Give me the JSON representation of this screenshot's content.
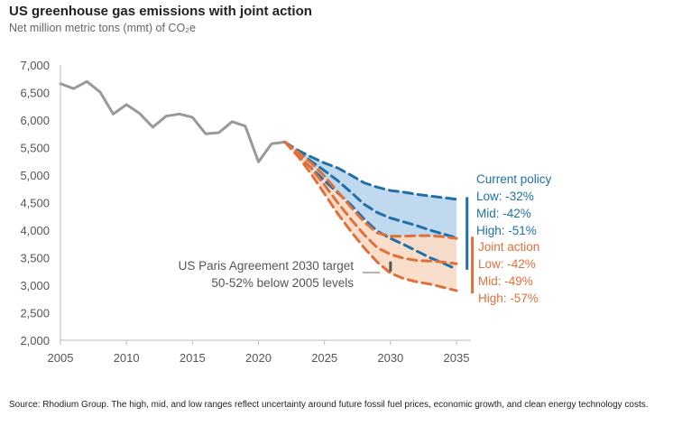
{
  "title": "US greenhouse gas emissions with joint action",
  "subtitle": "Net million metric tons (mmt) of CO₂e",
  "source": "Source: Rhodium Group. The high, mid, and low ranges reflect uncertainty around future fossil fuel prices, economic growth, and clean energy technology costs.",
  "colors": {
    "historical": "#999999",
    "current_policy": "#1f6fa8",
    "current_policy_fill": "#bdd7ee",
    "joint_action": "#e0703a",
    "joint_action_fill": "#f9dcc8",
    "axis": "#bbbbbb"
  },
  "annotations": {
    "current_policy": {
      "heading": "Current policy",
      "low": "Low: -32%",
      "mid": "Mid: -42%",
      "high": "High: -51%"
    },
    "joint_action": {
      "heading": "Joint action",
      "low": "Low: -42%",
      "mid": "Mid: -49%",
      "high": "High: -57%"
    },
    "paris": {
      "line1": "US Paris Agreement 2030 target",
      "line2": "50-52% below 2005 levels"
    }
  },
  "chart_data": {
    "type": "line",
    "title": "US greenhouse gas emissions with joint action",
    "ylabel": "Net million metric tons (mmt) of CO₂e",
    "xlim": [
      2005,
      2035
    ],
    "ylim": [
      2000,
      7000
    ],
    "x_ticks": [
      2005,
      2010,
      2015,
      2020,
      2025,
      2030,
      2035
    ],
    "y_ticks": [
      2000,
      2500,
      3000,
      3500,
      4000,
      4500,
      5000,
      5500,
      6000,
      6500,
      7000
    ],
    "y_tick_labels": [
      "2,000",
      "2,500",
      "3,000",
      "3,500",
      "4,000",
      "4,500",
      "5,000",
      "5,500",
      "6,000",
      "6,500",
      "7,000"
    ],
    "grid": false,
    "series": [
      {
        "style": "solid",
        "color": "#999999",
        "x": [
          2005,
          2006,
          2007,
          2008,
          2009,
          2010,
          2011,
          2012,
          2013,
          2014,
          2015,
          2016,
          2017,
          2018,
          2019,
          2020,
          2021,
          2022
        ],
        "values": [
          6660,
          6570,
          6700,
          6510,
          6110,
          6280,
          6120,
          5870,
          6070,
          6110,
          6050,
          5750,
          5770,
          5970,
          5890,
          5240,
          5570,
          5600
        ]
      },
      {
        "name": "Current policy Low",
        "style": "dashed",
        "color": "#1f6fa8",
        "x": [
          2022,
          2023,
          2024,
          2025,
          2026,
          2027,
          2028,
          2029,
          2030,
          2031,
          2032,
          2033,
          2034,
          2035
        ],
        "values": [
          5600,
          5450,
          5330,
          5220,
          5130,
          5000,
          4860,
          4780,
          4720,
          4690,
          4650,
          4620,
          4590,
          4560
        ]
      },
      {
        "name": "Current policy Mid",
        "style": "dashed",
        "color": "#1f6fa8",
        "x": [
          2022,
          2023,
          2024,
          2025,
          2026,
          2027,
          2028,
          2029,
          2030,
          2031,
          2032,
          2033,
          2034,
          2035
        ],
        "values": [
          5600,
          5420,
          5250,
          5080,
          4900,
          4690,
          4470,
          4320,
          4220,
          4150,
          4080,
          4000,
          3930,
          3860
        ]
      },
      {
        "name": "Current policy High",
        "style": "dashed",
        "color": "#1f6fa8",
        "x": [
          2022,
          2023,
          2024,
          2025,
          2026,
          2027,
          2028,
          2029,
          2030,
          2031,
          2032,
          2033,
          2034,
          2035
        ],
        "values": [
          5600,
          5360,
          5130,
          4900,
          4680,
          4460,
          4200,
          3980,
          3850,
          3740,
          3620,
          3500,
          3400,
          3290
        ]
      },
      {
        "name": "Joint action Low",
        "style": "dashed",
        "color": "#e0703a",
        "x": [
          2022,
          2023,
          2024,
          2025,
          2026,
          2027,
          2028,
          2029,
          2030,
          2031,
          2032,
          2033,
          2034,
          2035
        ],
        "values": [
          5600,
          5420,
          5220,
          4980,
          4700,
          4420,
          4150,
          3950,
          3890,
          3890,
          3900,
          3900,
          3880,
          3850
        ]
      },
      {
        "name": "Joint action Mid",
        "style": "dashed",
        "color": "#e0703a",
        "x": [
          2022,
          2023,
          2024,
          2025,
          2026,
          2027,
          2028,
          2029,
          2030,
          2031,
          2032,
          2033,
          2034,
          2035
        ],
        "values": [
          5600,
          5380,
          5120,
          4820,
          4500,
          4200,
          3920,
          3680,
          3560,
          3490,
          3450,
          3440,
          3420,
          3390
        ]
      },
      {
        "name": "Joint action High",
        "style": "dashed",
        "color": "#e0703a",
        "x": [
          2022,
          2023,
          2024,
          2025,
          2026,
          2027,
          2028,
          2029,
          2030,
          2031,
          2032,
          2033,
          2034,
          2035
        ],
        "values": [
          5600,
          5340,
          5020,
          4660,
          4300,
          3980,
          3680,
          3420,
          3220,
          3120,
          3060,
          3020,
          2960,
          2900
        ]
      }
    ],
    "bands": [
      {
        "label": "Current policy",
        "color": "#bdd7ee",
        "upper": "Current policy Low",
        "lower": "Current policy High"
      },
      {
        "label": "Joint action",
        "color": "#f9dcc8",
        "upper": "Joint action Low",
        "lower": "Joint action High"
      }
    ],
    "range_bars": [
      {
        "label": "Current policy",
        "color": "#1f6fa8",
        "x": 2035.8,
        "from": 4600,
        "to": 3280
      },
      {
        "label": "Joint action",
        "color": "#e0703a",
        "x": 2036.2,
        "from": 3880,
        "to": 2850
      }
    ],
    "target_marker": {
      "x": 2030,
      "from": 3430,
      "to": 3250,
      "color": "#555555"
    }
  }
}
